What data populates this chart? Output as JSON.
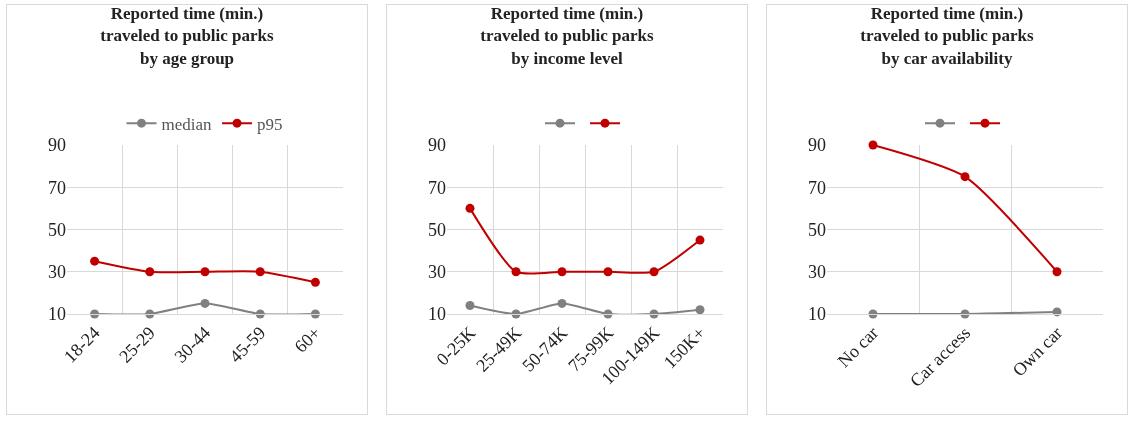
{
  "chart_data": [
    {
      "type": "line",
      "title": "Reported time (min.)\ntraveled to public parks\nby age group",
      "categories": [
        "18-24",
        "25-29",
        "30-44",
        "45-59",
        "60+"
      ],
      "series": [
        {
          "name": "median",
          "color": "#808080",
          "values": [
            10,
            10,
            15,
            10,
            10
          ]
        },
        {
          "name": "p95",
          "color": "#c00000",
          "values": [
            35,
            30,
            30,
            30,
            25
          ]
        }
      ],
      "ylim": [
        10,
        90
      ],
      "yticks": [
        10,
        30,
        50,
        70,
        90
      ],
      "grid": true,
      "legend": "top",
      "marker": "circle",
      "line_style": "solid"
    },
    {
      "type": "line",
      "title": "Reported time (min.)\ntraveled to public parks\nby income level",
      "categories": [
        "0-25K",
        "25-49K",
        "50-74K",
        "75-99K",
        "100-149K",
        "150K+"
      ],
      "series": [
        {
          "color": "#808080",
          "values": [
            14,
            10,
            15,
            10,
            10,
            12
          ]
        },
        {
          "color": "#c00000",
          "values": [
            60,
            30,
            30,
            30,
            30,
            45
          ]
        }
      ],
      "ylim": [
        10,
        90
      ],
      "yticks": [
        10,
        30,
        50,
        70,
        90
      ],
      "grid": true,
      "legend": "top",
      "marker": "circle",
      "line_style": "solid"
    },
    {
      "type": "line",
      "title": "Reported time (min.)\ntraveled to public parks\nby car availability",
      "categories": [
        "No car",
        "Car access",
        "Own car"
      ],
      "series": [
        {
          "color": "#808080",
          "values": [
            10,
            10,
            11
          ]
        },
        {
          "color": "#c00000",
          "values": [
            90,
            75,
            30
          ]
        }
      ],
      "ylim": [
        10,
        90
      ],
      "yticks": [
        10,
        30,
        50,
        70,
        90
      ],
      "grid": true,
      "legend": "top",
      "marker": "circle",
      "line_style": "solid"
    }
  ]
}
